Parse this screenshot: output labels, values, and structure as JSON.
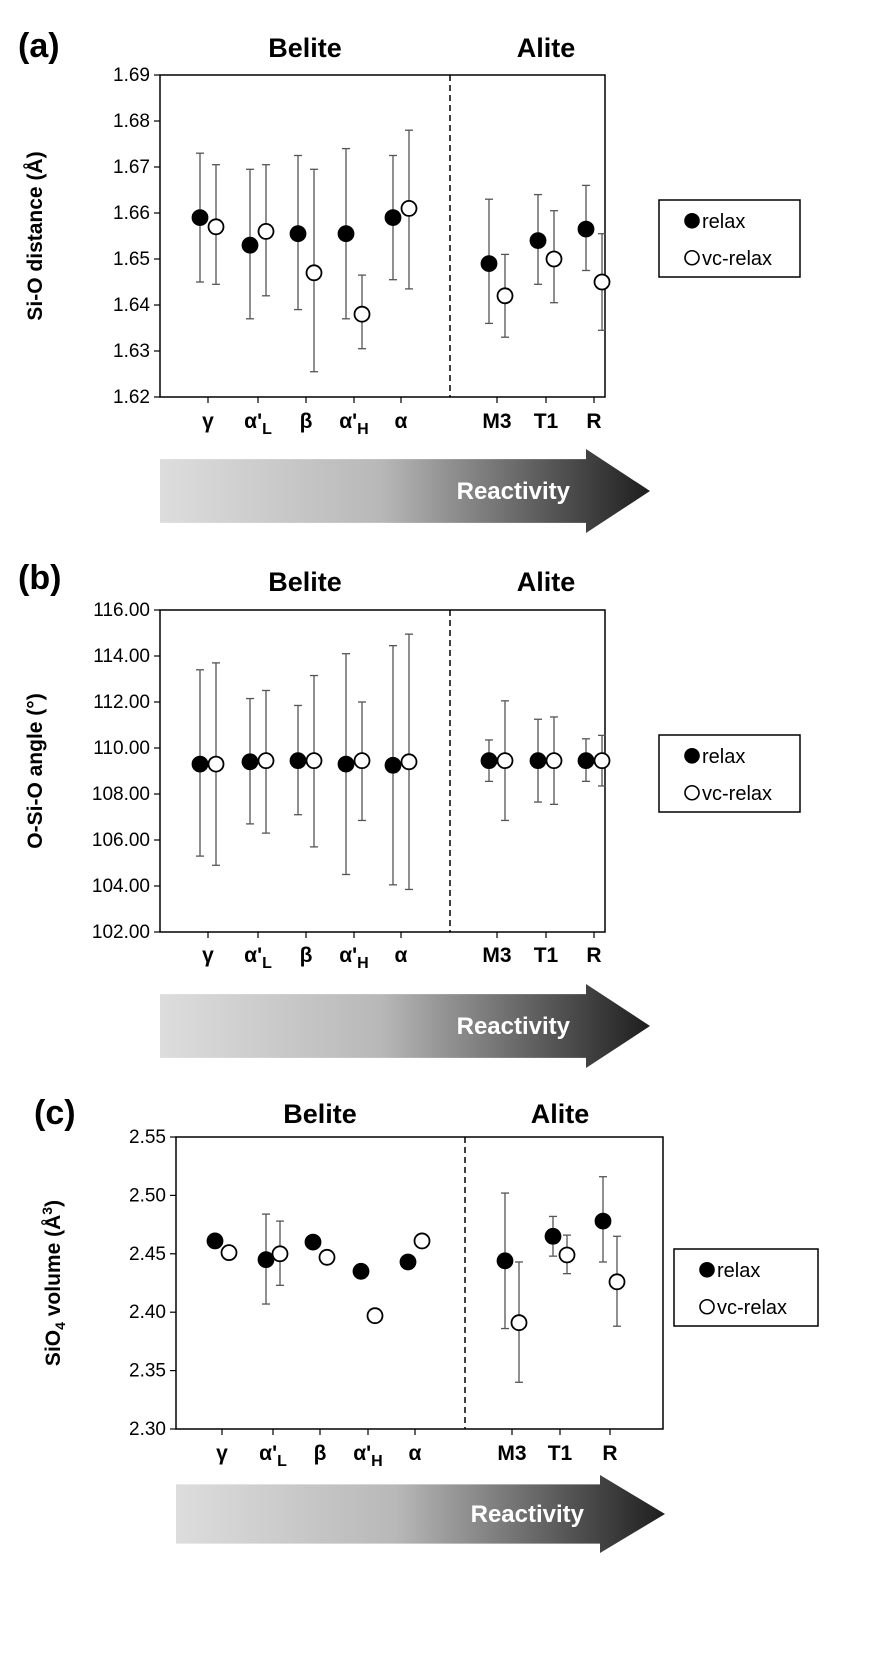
{
  "colors": {
    "relax_fill": "#000000",
    "vc_relax_fill": "#ffffff",
    "arrow_start": "#dddddd",
    "arrow_end": "#1e1e1e"
  },
  "legend": {
    "relax": "relax",
    "vc_relax": "vc-relax"
  },
  "arrow_label": "Reactivity",
  "chart_data": [
    {
      "type": "scatter",
      "panel_label": "(a)",
      "group_titles": [
        "Belite",
        "Alite"
      ],
      "ylabel": "Si-O distance (Å)",
      "ylim": [
        1.62,
        1.69
      ],
      "yticks": [
        "1.62",
        "1.63",
        "1.64",
        "1.65",
        "1.66",
        "1.67",
        "1.68",
        "1.69"
      ],
      "categories": [
        {
          "main": "γ",
          "sub": ""
        },
        {
          "main": "α'",
          "sub": "L"
        },
        {
          "main": "β",
          "sub": ""
        },
        {
          "main": "α'",
          "sub": "H"
        },
        {
          "main": "α",
          "sub": ""
        },
        {
          "main": "M3",
          "sub": ""
        },
        {
          "main": "T1",
          "sub": ""
        },
        {
          "main": "R",
          "sub": ""
        }
      ],
      "series": [
        {
          "name": "relax",
          "values": [
            1.659,
            1.653,
            1.6555,
            1.6555,
            1.659,
            1.649,
            1.654,
            1.6565
          ],
          "err_low": [
            1.645,
            1.637,
            1.639,
            1.637,
            1.6455,
            1.636,
            1.6445,
            1.6475
          ],
          "err_high": [
            1.673,
            1.6695,
            1.6725,
            1.674,
            1.6725,
            1.663,
            1.664,
            1.666
          ]
        },
        {
          "name": "vc-relax",
          "values": [
            1.657,
            1.656,
            1.647,
            1.638,
            1.661,
            1.642,
            1.65,
            1.645
          ],
          "err_low": [
            1.6445,
            1.642,
            1.6255,
            1.6305,
            1.6435,
            1.633,
            1.6405,
            1.6345
          ],
          "err_high": [
            1.6705,
            1.6705,
            1.6695,
            1.6465,
            1.678,
            1.651,
            1.6605,
            1.6555
          ]
        }
      ]
    },
    {
      "type": "scatter",
      "panel_label": "(b)",
      "group_titles": [
        "Belite",
        "Alite"
      ],
      "ylabel": "O-Si-O angle (°)",
      "ylim": [
        102,
        116
      ],
      "yticks": [
        "102.00",
        "104.00",
        "106.00",
        "108.00",
        "110.00",
        "112.00",
        "114.00",
        "116.00"
      ],
      "categories": [
        {
          "main": "γ",
          "sub": ""
        },
        {
          "main": "α'",
          "sub": "L"
        },
        {
          "main": "β",
          "sub": ""
        },
        {
          "main": "α'",
          "sub": "H"
        },
        {
          "main": "α",
          "sub": ""
        },
        {
          "main": "M3",
          "sub": ""
        },
        {
          "main": "T1",
          "sub": ""
        },
        {
          "main": "R",
          "sub": ""
        }
      ],
      "series": [
        {
          "name": "relax",
          "values": [
            109.3,
            109.4,
            109.45,
            109.3,
            109.25,
            109.45,
            109.45,
            109.45
          ],
          "err_low": [
            105.3,
            106.7,
            107.1,
            104.5,
            104.05,
            108.55,
            107.65,
            108.55
          ],
          "err_high": [
            113.4,
            112.15,
            111.85,
            114.1,
            114.45,
            110.35,
            111.25,
            110.4
          ]
        },
        {
          "name": "vc-relax",
          "values": [
            109.3,
            109.45,
            109.45,
            109.45,
            109.4,
            109.45,
            109.45,
            109.45
          ],
          "err_low": [
            104.9,
            106.3,
            105.7,
            106.85,
            103.85,
            106.85,
            107.55,
            108.35
          ],
          "err_high": [
            113.7,
            112.5,
            113.15,
            112.0,
            114.95,
            112.05,
            111.35,
            110.55
          ]
        }
      ]
    },
    {
      "type": "scatter",
      "panel_label": "(c)",
      "group_titles": [
        "Belite",
        "Alite"
      ],
      "ylabel": "SiO4 volume (Å3)",
      "ylim": [
        2.3,
        2.55
      ],
      "yticks": [
        "2.30",
        "2.35",
        "2.40",
        "2.45",
        "2.50",
        "2.55"
      ],
      "categories": [
        {
          "main": "γ",
          "sub": ""
        },
        {
          "main": "α'",
          "sub": "L"
        },
        {
          "main": "β",
          "sub": ""
        },
        {
          "main": "α'",
          "sub": "H"
        },
        {
          "main": "α",
          "sub": ""
        },
        {
          "main": "M3",
          "sub": ""
        },
        {
          "main": "T1",
          "sub": ""
        },
        {
          "main": "R",
          "sub": ""
        }
      ],
      "series": [
        {
          "name": "relax",
          "values": [
            2.461,
            2.445,
            2.46,
            2.435,
            2.443,
            2.444,
            2.465,
            2.478
          ],
          "err_low": [
            null,
            2.407,
            null,
            null,
            null,
            2.386,
            2.448,
            2.443
          ],
          "err_high": [
            null,
            2.484,
            null,
            null,
            null,
            2.502,
            2.482,
            2.516
          ]
        },
        {
          "name": "vc-relax",
          "values": [
            2.451,
            2.45,
            2.447,
            2.397,
            2.461,
            2.391,
            2.449,
            2.426
          ],
          "err_low": [
            null,
            2.423,
            null,
            null,
            null,
            2.34,
            2.433,
            2.388
          ],
          "err_high": [
            null,
            2.478,
            null,
            null,
            null,
            2.443,
            2.466,
            2.465
          ]
        }
      ]
    }
  ]
}
